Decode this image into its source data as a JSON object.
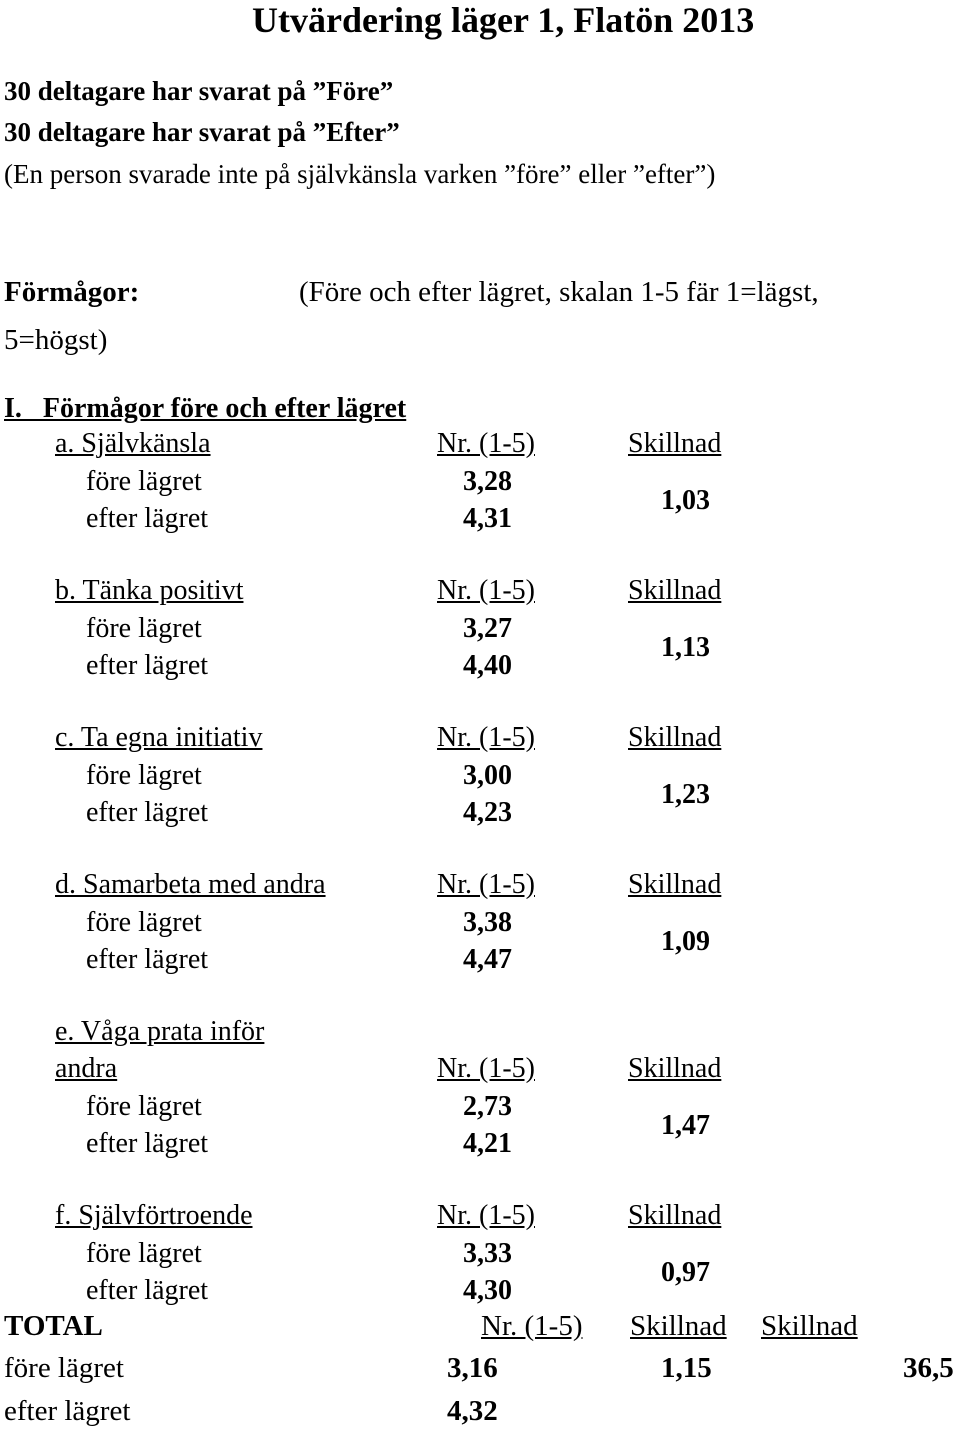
{
  "title": "Utvärdering läger 1, Flatön 2013",
  "intro": [
    "30 deltagare har svarat på ”Före”",
    "30 deltagare har svarat på ”Efter”",
    "(En person svarade inte på självkänsla varken ”före” eller ”efter”)"
  ],
  "formagor_label": "Förmågor:",
  "scale_note_1": "(Före och efter lägret, skalan 1-5 fär 1=lägst,",
  "scale_note_2": "5=högst)",
  "section_heading": "I.   Förmågor före och efter lägret",
  "sections": [
    {
      "label": "a. Självkänsla",
      "nr": "Nr. (1-5)",
      "skill": "Skillnad",
      "before_label": "före lägret",
      "before": "3,28",
      "after_label": "efter lägret",
      "after": "4,31",
      "diff": "1,03"
    },
    {
      "label": "b. Tänka positivt",
      "nr": "Nr. (1-5)",
      "skill": "Skillnad",
      "before_label": "före lägret",
      "before": "3,27",
      "after_label": "efter lägret",
      "after": "4,40",
      "diff": "1,13"
    },
    {
      "label": "c. Ta egna initiativ",
      "nr": "Nr. (1-5)",
      "skill": "Skillnad",
      "before_label": "före lägret",
      "before": "3,00",
      "after_label": "efter lägret",
      "after": "4,23",
      "diff": "1,23"
    },
    {
      "label": "d. Samarbeta med andra",
      "nr": "Nr. (1-5)",
      "skill": "Skillnad",
      "before_label": "före lägret",
      "before": "3,38",
      "after_label": "efter lägret",
      "after": "4,47",
      "diff": "1,09"
    },
    {
      "label_line1": "e. Våga prata inför",
      "label_line2": "andra",
      "nr": "Nr. (1-5)",
      "skill": "Skillnad",
      "before_label": "före lägret",
      "before": "2,73",
      "after_label": "efter lägret",
      "after": "4,21",
      "diff": "1,47"
    },
    {
      "label": "f. Självförtroende",
      "nr": "Nr. (1-5)",
      "skill": "Skillnad",
      "before_label": "före lägret",
      "before": "3,33",
      "after_label": "efter lägret",
      "after": "4,30",
      "diff": "0,97"
    }
  ],
  "total": {
    "label": "TOTAL",
    "nr": "Nr. (1-5)",
    "skill1": "Skillnad",
    "skill2": "Skillnad",
    "before_label": "före lägret",
    "before": "3,16",
    "diff": "1,15",
    "diff_pct": "36,5",
    "after_label": "efter lägret",
    "after": "4,32"
  }
}
